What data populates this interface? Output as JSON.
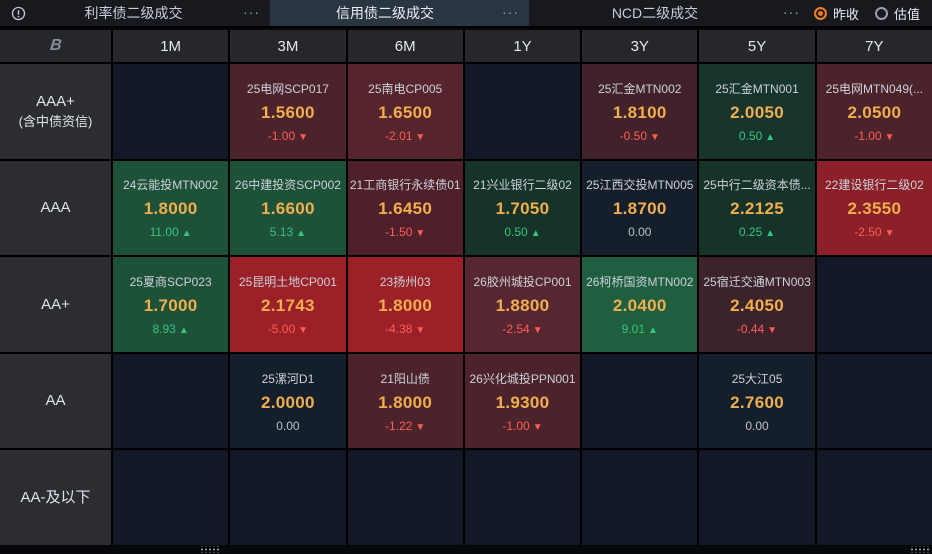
{
  "tabs": {
    "left": {
      "label": "利率债二级成交",
      "menu_icon": "···"
    },
    "active": {
      "label": "信用债二级成交",
      "menu_icon": "···"
    },
    "right": {
      "label": "NCD二级成交",
      "menu_icon": "···"
    }
  },
  "price_mode": {
    "options": [
      {
        "label": "昨收",
        "selected": true
      },
      {
        "label": "估值",
        "selected": false
      }
    ]
  },
  "legend": {
    "up_arrow": "▲",
    "down_arrow": "▼"
  },
  "colors": {
    "accent_orange": "#f07c1c",
    "active_tab_bg": "#2b3542",
    "value_text": "#f0ae4e",
    "up_text": "#38c57d",
    "down_text": "#ff5d57",
    "neutral_text": "#b9c0c9",
    "empty_bg": "#121826",
    "up_strong_bg": "#1d5138",
    "up_weak_bg": "#16332a",
    "down_strong_bg": "#9c2027",
    "down_weak_bg": "#4d232b",
    "flat_bg": "#151f2b"
  },
  "grid": {
    "corner_logo": "B",
    "tenors": [
      "1M",
      "3M",
      "6M",
      "1Y",
      "3Y",
      "5Y",
      "7Y"
    ],
    "rows": [
      {
        "rating": "AAA+",
        "rating_sub": "(含中债资信)",
        "cells": [
          null,
          {
            "name": "25电网SCP017",
            "value": "1.5600",
            "change": "-1.00",
            "direction": "down",
            "bg": "#4d232b"
          },
          {
            "name": "25南电CP005",
            "value": "1.6500",
            "change": "-2.01",
            "direction": "down",
            "bg": "#56242c"
          },
          null,
          {
            "name": "25汇金MTN002",
            "value": "1.8100",
            "change": "-0.50",
            "direction": "down",
            "bg": "#41222b"
          },
          {
            "name": "25汇金MTN001",
            "value": "2.0050",
            "change": "0.50",
            "direction": "up",
            "bg": "#17352c"
          },
          {
            "name": "25电网MTN049(...",
            "value": "2.0500",
            "change": "-1.00",
            "direction": "down",
            "bg": "#4d232b"
          }
        ]
      },
      {
        "rating": "AAA",
        "rating_sub": "",
        "cells": [
          {
            "name": "24云能投MTN002",
            "value": "1.8000",
            "change": "11.00",
            "direction": "up",
            "bg": "#1d5138"
          },
          {
            "name": "26中建投资SCP002",
            "value": "1.6600",
            "change": "5.13",
            "direction": "up",
            "bg": "#1d5138"
          },
          {
            "name": "21工商银行永续债01",
            "value": "1.6450",
            "change": "-1.50",
            "direction": "down",
            "bg": "#4f202a"
          },
          {
            "name": "21兴业银行二级02",
            "value": "1.7050",
            "change": "0.50",
            "direction": "up",
            "bg": "#16332a"
          },
          {
            "name": "25江西交投MTN005",
            "value": "1.8700",
            "change": "0.00",
            "direction": "zero",
            "bg": "#151f2b"
          },
          {
            "name": "25中行二级资本债...",
            "value": "2.2125",
            "change": "0.25",
            "direction": "up",
            "bg": "#16332a"
          },
          {
            "name": "22建设银行二级02",
            "value": "2.3550",
            "change": "-2.50",
            "direction": "down",
            "bg": "#8c2028"
          }
        ]
      },
      {
        "rating": "AA+",
        "rating_sub": "",
        "cells": [
          {
            "name": "25夏商SCP023",
            "value": "1.7000",
            "change": "8.93",
            "direction": "up",
            "bg": "#1d5138"
          },
          {
            "name": "25昆明土地CP001",
            "value": "2.1743",
            "change": "-5.00",
            "direction": "down",
            "bg": "#9c2027"
          },
          {
            "name": "23扬州03",
            "value": "1.8000",
            "change": "-4.38",
            "direction": "down",
            "bg": "#9c2027"
          },
          {
            "name": "26胶州城投CP001",
            "value": "1.8800",
            "change": "-2.54",
            "direction": "down",
            "bg": "#572731"
          },
          {
            "name": "26柯桥国资MTN002",
            "value": "2.0400",
            "change": "9.01",
            "direction": "up",
            "bg": "#1f5e3e"
          },
          {
            "name": "25宿迁交通MTN003",
            "value": "2.4050",
            "change": "-0.44",
            "direction": "down",
            "bg": "#3c222b"
          },
          null
        ]
      },
      {
        "rating": "AA",
        "rating_sub": "",
        "cells": [
          null,
          {
            "name": "25漯河D1",
            "value": "2.0000",
            "change": "0.00",
            "direction": "zero",
            "bg": "#151f2b"
          },
          {
            "name": "21阳山债",
            "value": "1.8000",
            "change": "-1.22",
            "direction": "down",
            "bg": "#4d232b"
          },
          {
            "name": "26兴化城投PPN001",
            "value": "1.9300",
            "change": "-1.00",
            "direction": "down",
            "bg": "#4d232b"
          },
          null,
          {
            "name": "25大江05",
            "value": "2.7600",
            "change": "0.00",
            "direction": "zero",
            "bg": "#151f2b"
          },
          null
        ]
      },
      {
        "rating": "AA-及以下",
        "rating_sub": "",
        "cells": [
          null,
          null,
          null,
          null,
          null,
          null,
          null
        ]
      }
    ]
  }
}
